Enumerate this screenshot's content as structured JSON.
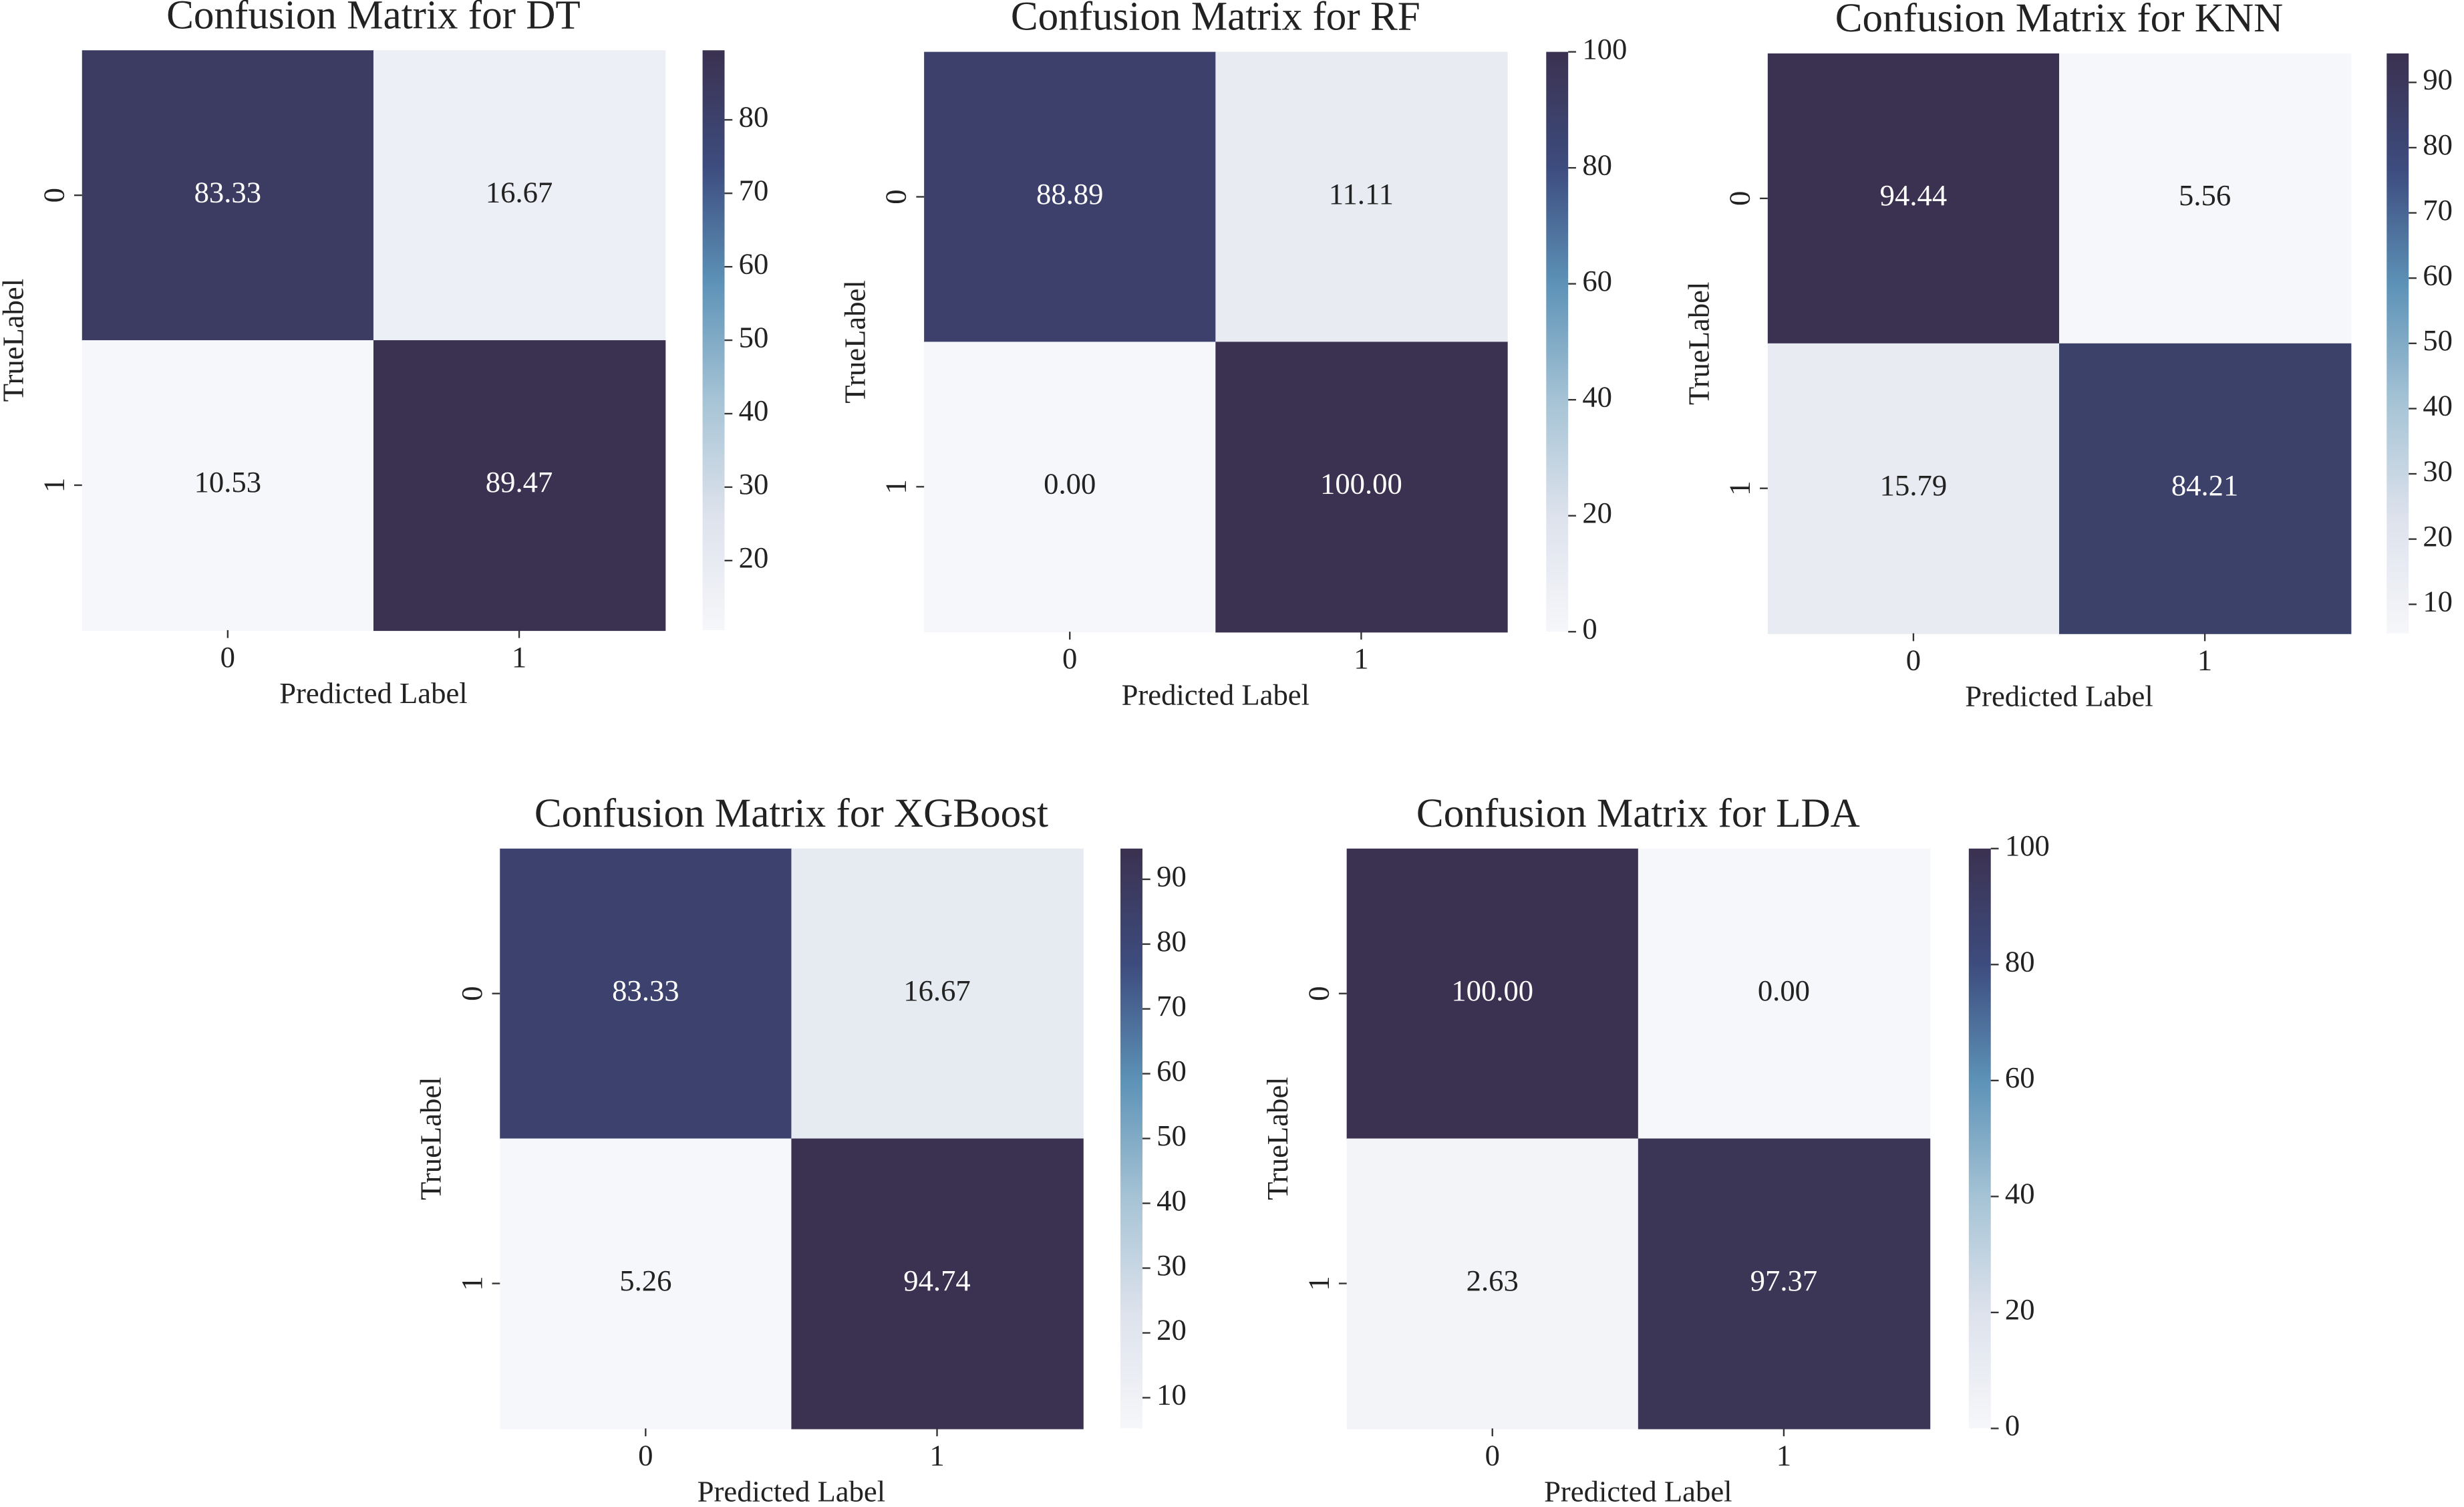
{
  "chart_data": [
    {
      "type": "heatmap",
      "title": "Confusion Matrix for DT",
      "xlabel": "Predicted Label",
      "ylabel": "TrueLabel",
      "x_categories": [
        "0",
        "1"
      ],
      "y_categories": [
        "0",
        "1"
      ],
      "values": [
        [
          83.33,
          16.67
        ],
        [
          10.53,
          89.47
        ]
      ],
      "value_labels": [
        [
          "83.33",
          "16.67"
        ],
        [
          "10.53",
          "89.47"
        ]
      ],
      "zlim": [
        10.53,
        89.47
      ],
      "zticks": [
        20,
        30,
        40,
        50,
        60,
        70,
        80
      ],
      "colormap": [
        "#f6f7fa",
        "#dde2ec",
        "#a5c3d5",
        "#5d92b7",
        "#3d4c7e",
        "#3b3150"
      ]
    },
    {
      "type": "heatmap",
      "title": "Confusion Matrix for RF",
      "xlabel": "Predicted Label",
      "ylabel": "TrueLabel",
      "x_categories": [
        "0",
        "1"
      ],
      "y_categories": [
        "0",
        "1"
      ],
      "values": [
        [
          88.89,
          11.11
        ],
        [
          0,
          100
        ]
      ],
      "value_labels": [
        [
          "88.89",
          "11.11"
        ],
        [
          "0.00",
          "100.00"
        ]
      ],
      "zlim": [
        0,
        100
      ],
      "zticks": [
        0,
        20,
        40,
        60,
        80,
        100
      ],
      "colormap": [
        "#f6f7fa",
        "#dde2ec",
        "#a5c3d5",
        "#5d92b7",
        "#3d4c7e",
        "#3b3150"
      ]
    },
    {
      "type": "heatmap",
      "title": "Confusion Matrix for KNN",
      "xlabel": "Predicted Label",
      "ylabel": "TrueLabel",
      "x_categories": [
        "0",
        "1"
      ],
      "y_categories": [
        "0",
        "1"
      ],
      "values": [
        [
          94.44,
          5.56
        ],
        [
          15.79,
          84.21
        ]
      ],
      "value_labels": [
        [
          "94.44",
          "5.56"
        ],
        [
          "15.79",
          "84.21"
        ]
      ],
      "zlim": [
        5.56,
        94.44
      ],
      "zticks": [
        10,
        20,
        30,
        40,
        50,
        60,
        70,
        80,
        90
      ],
      "colormap": [
        "#f6f7fa",
        "#dde2ec",
        "#a5c3d5",
        "#5d92b7",
        "#3d4c7e",
        "#3b3150"
      ]
    },
    {
      "type": "heatmap",
      "title": "Confusion Matrix for XGBoost",
      "xlabel": "Predicted Label",
      "ylabel": "TrueLabel",
      "x_categories": [
        "0",
        "1"
      ],
      "y_categories": [
        "0",
        "1"
      ],
      "values": [
        [
          83.33,
          16.67
        ],
        [
          5.26,
          94.74
        ]
      ],
      "value_labels": [
        [
          "83.33",
          "16.67"
        ],
        [
          "5.26",
          "94.74"
        ]
      ],
      "zlim": [
        5.26,
        94.74
      ],
      "zticks": [
        10,
        20,
        30,
        40,
        50,
        60,
        70,
        80,
        90
      ],
      "colormap": [
        "#f6f7fa",
        "#dde2ec",
        "#a5c3d5",
        "#5d92b7",
        "#3d4c7e",
        "#3b3150"
      ]
    },
    {
      "type": "heatmap",
      "title": "Confusion Matrix for LDA",
      "xlabel": "Predicted Label",
      "ylabel": "TrueLabel",
      "x_categories": [
        "0",
        "1"
      ],
      "y_categories": [
        "0",
        "1"
      ],
      "values": [
        [
          100,
          0
        ],
        [
          2.63,
          97.37
        ]
      ],
      "value_labels": [
        [
          "100.00",
          "0.00"
        ],
        [
          "2.63",
          "97.37"
        ]
      ],
      "zlim": [
        0,
        100
      ],
      "zticks": [
        0,
        20,
        40,
        60,
        80,
        100
      ],
      "colormap": [
        "#f6f7fa",
        "#dde2ec",
        "#a5c3d5",
        "#5d92b7",
        "#3d4c7e",
        "#3b3150"
      ]
    }
  ]
}
